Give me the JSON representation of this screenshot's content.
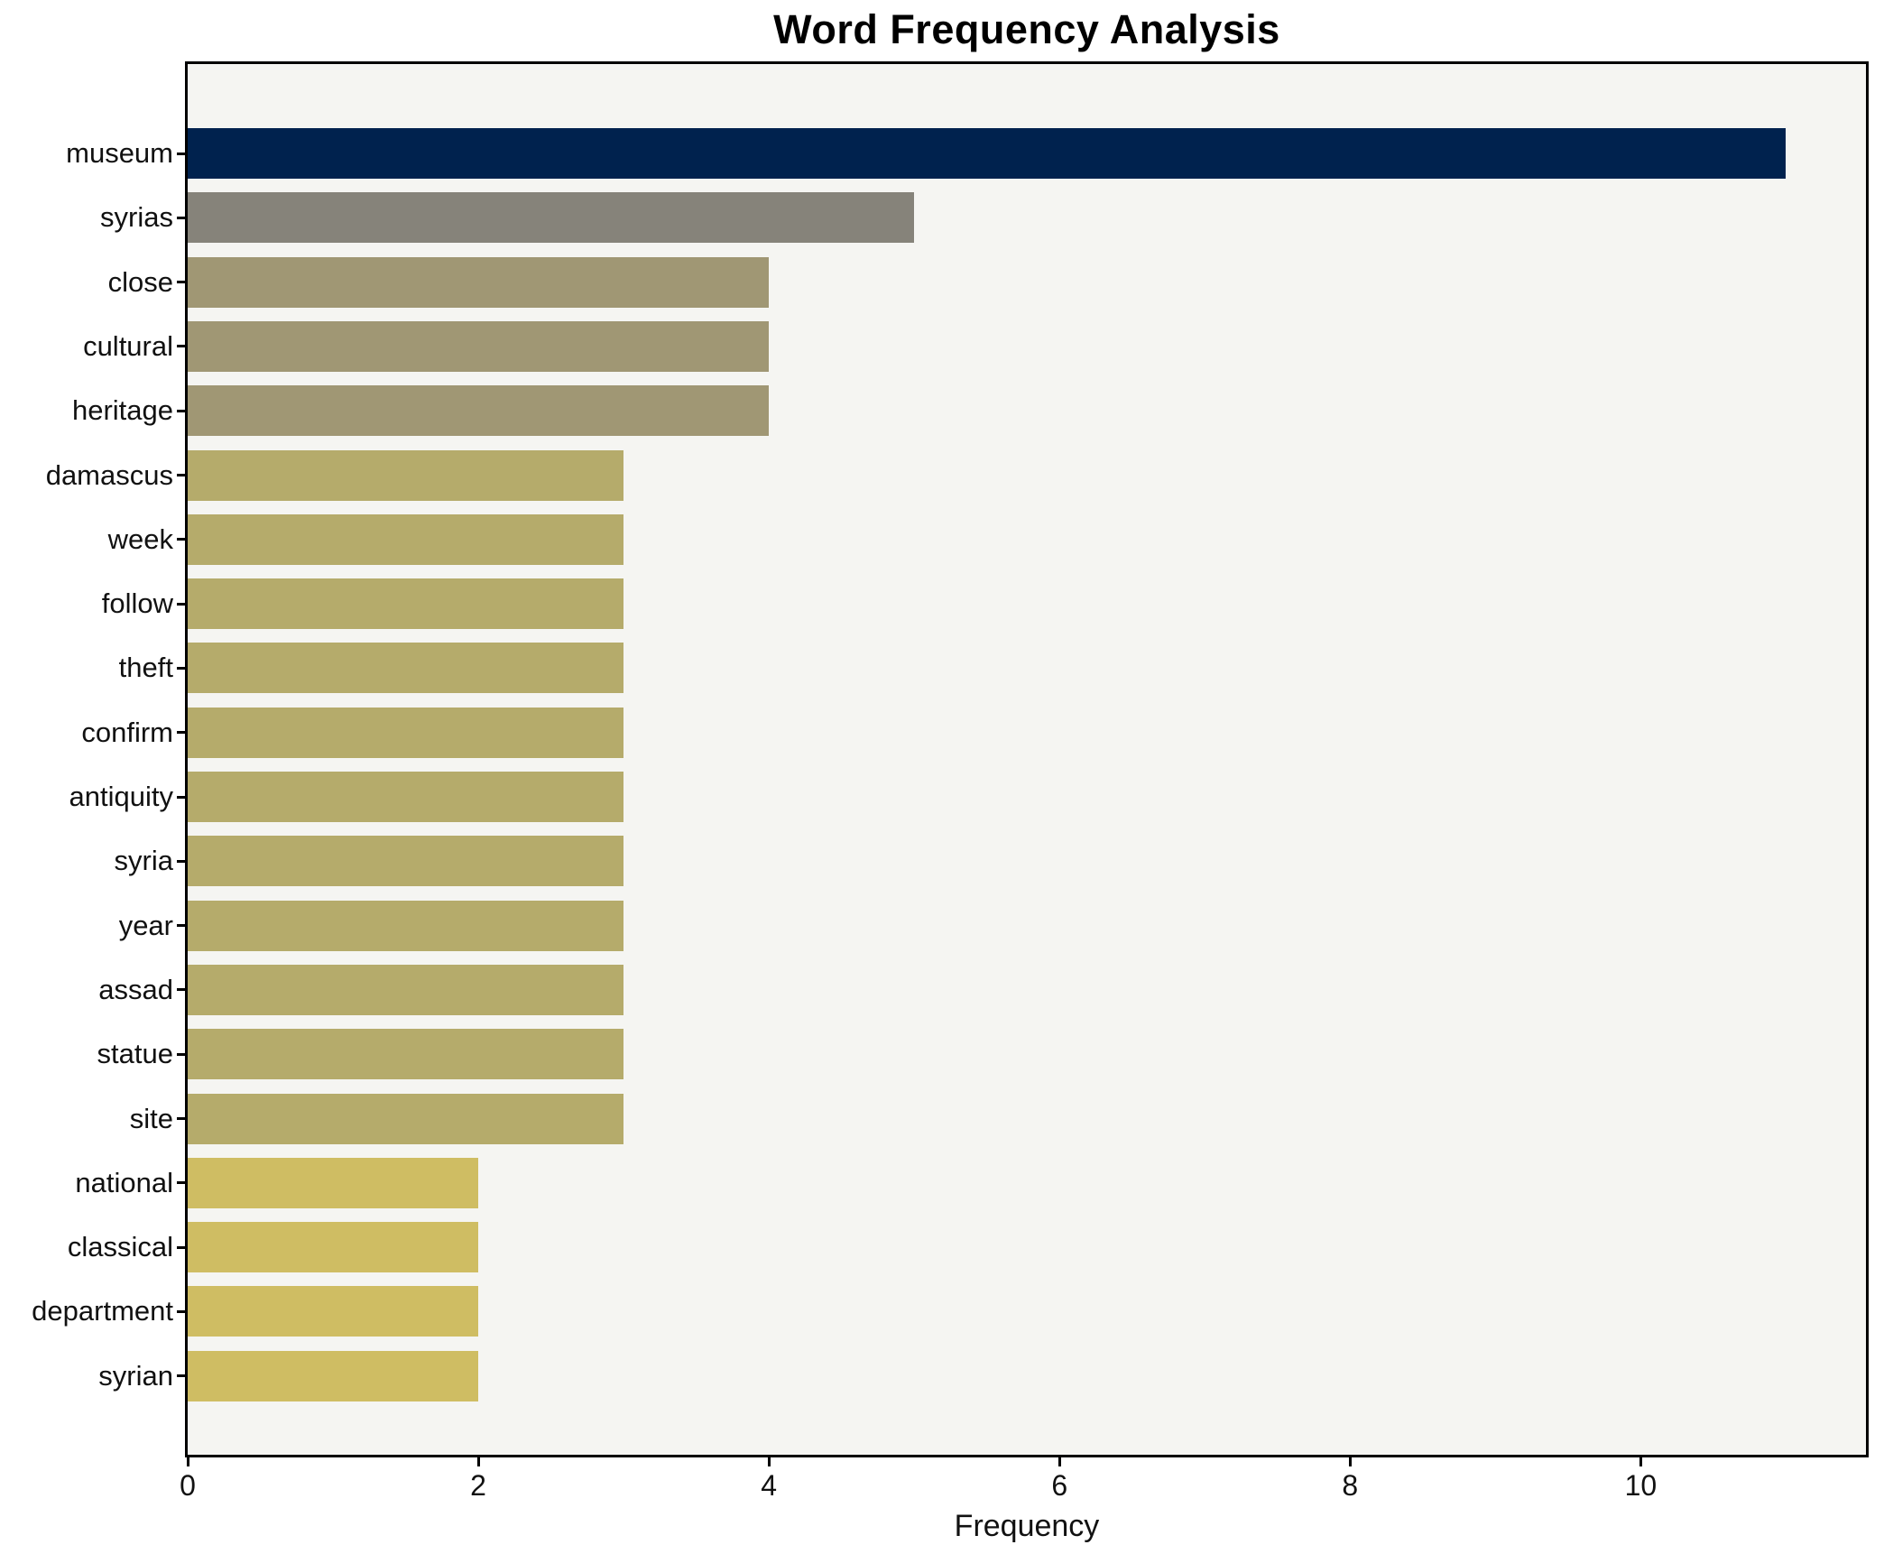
{
  "chart_data": {
    "type": "bar",
    "orientation": "horizontal",
    "title": "Word Frequency Analysis",
    "xlabel": "Frequency",
    "ylabel": "",
    "categories": [
      "museum",
      "syrias",
      "close",
      "cultural",
      "heritage",
      "damascus",
      "week",
      "follow",
      "theft",
      "confirm",
      "antiquity",
      "syria",
      "year",
      "assad",
      "statue",
      "site",
      "national",
      "classical",
      "department",
      "syrian"
    ],
    "values": [
      11,
      5,
      4,
      4,
      4,
      3,
      3,
      3,
      3,
      3,
      3,
      3,
      3,
      3,
      3,
      3,
      2,
      2,
      2,
      2
    ],
    "bar_colors": [
      "#00224e",
      "#86837a",
      "#a09774",
      "#a09774",
      "#a09774",
      "#b5ab6b",
      "#b5ab6b",
      "#b5ab6b",
      "#b5ab6b",
      "#b5ab6b",
      "#b5ab6b",
      "#b5ab6b",
      "#b5ab6b",
      "#b5ab6b",
      "#b5ab6b",
      "#b5ab6b",
      "#cfbd63",
      "#cfbd63",
      "#cfbd63",
      "#cfbd63"
    ],
    "xticks": [
      0,
      2,
      4,
      6,
      8,
      10
    ],
    "xtick_labels": [
      "0",
      "2",
      "4",
      "6",
      "8",
      "10"
    ],
    "xlim": [
      0,
      11.55
    ],
    "ylim_note": "categories listed top to bottom",
    "grid": false,
    "legend": null,
    "plot_background": "#f5f5f2",
    "spine_color": "#000000"
  }
}
